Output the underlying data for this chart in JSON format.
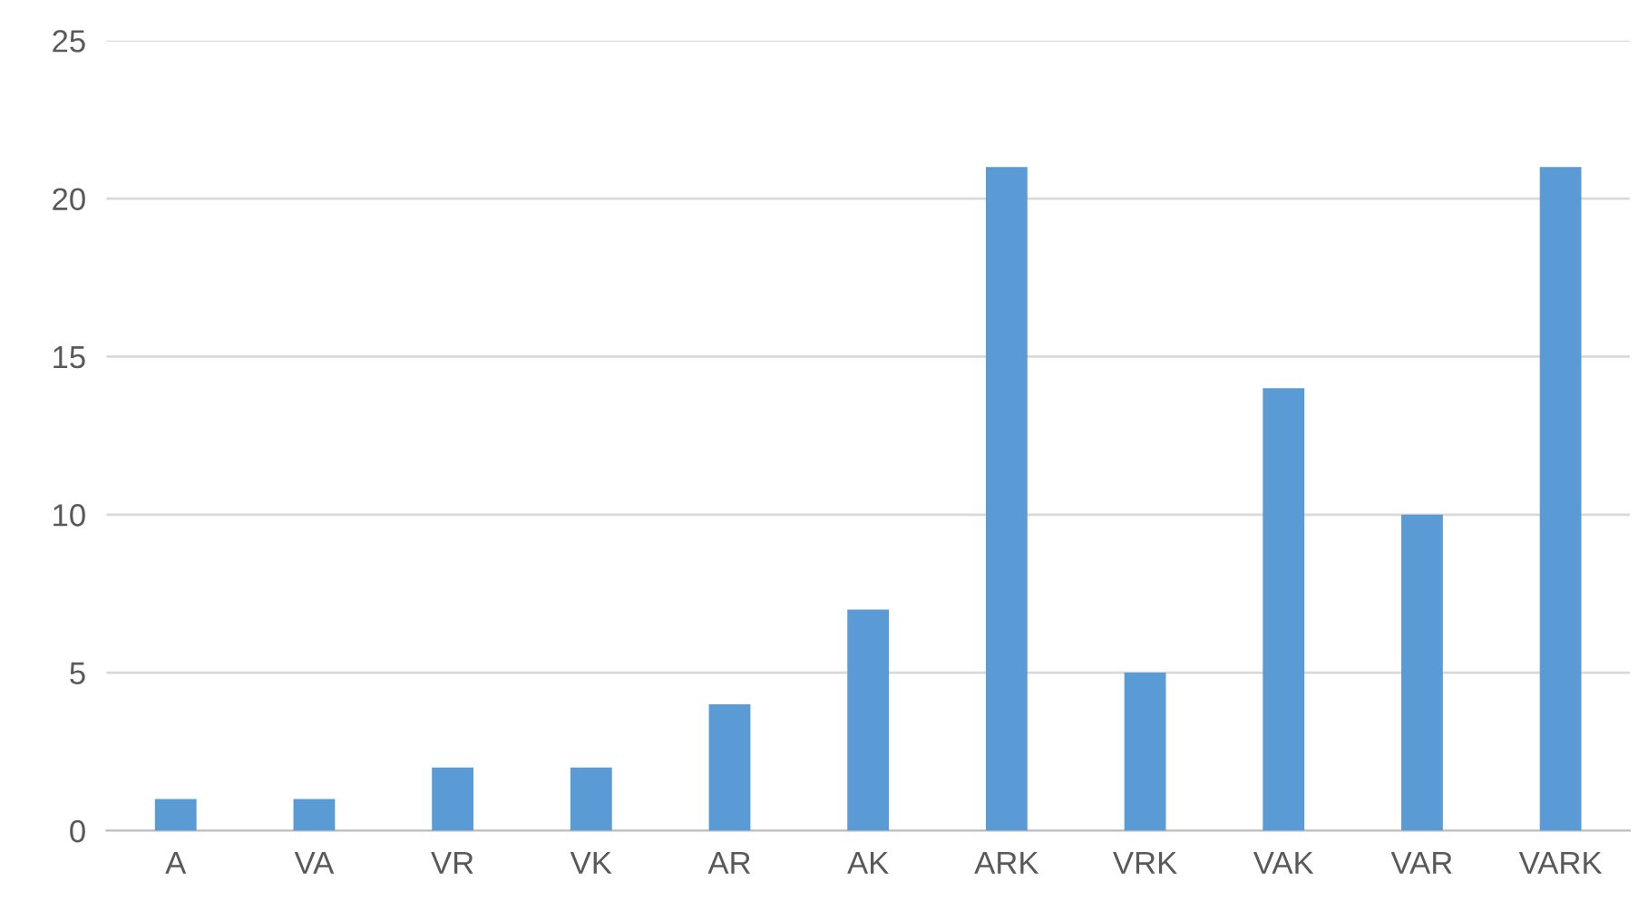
{
  "chart_data": {
    "type": "bar",
    "categories": [
      "A",
      "VA",
      "VR",
      "VK",
      "AR",
      "AK",
      "ARK",
      "VRK",
      "VAK",
      "VAR",
      "VARK"
    ],
    "values": [
      1,
      1,
      2,
      2,
      4,
      7,
      21,
      5,
      14,
      10,
      21
    ],
    "color": "#5b9bd5",
    "ylim": [
      0,
      25
    ],
    "yticks": [
      0,
      5,
      10,
      15,
      20,
      25
    ],
    "grid": "y"
  }
}
